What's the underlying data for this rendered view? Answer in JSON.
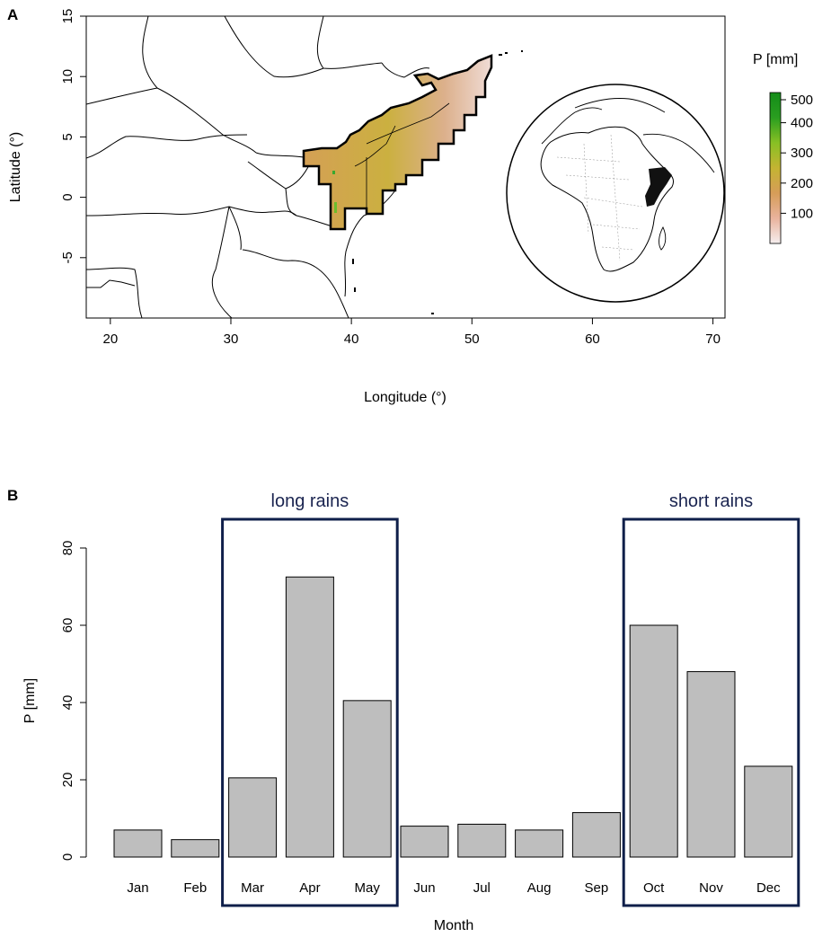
{
  "panel_a": {
    "letter": "A",
    "xlabel": "Longitude (°)",
    "ylabel": "Latitude (°)",
    "xticks": [
      "20",
      "30",
      "40",
      "50",
      "60",
      "70"
    ],
    "yticks": [
      "15",
      "10",
      "5",
      "0",
      "-5"
    ],
    "xlim": [
      18,
      71
    ],
    "ylim": [
      -10,
      15
    ],
    "legend": {
      "title": "P [mm]",
      "ticks": [
        "500",
        "400",
        "300",
        "200",
        "100"
      ],
      "range": [
        0,
        500
      ],
      "colors": [
        "#f5eeee",
        "#e9b39d",
        "#d69d58",
        "#c4b432",
        "#88c024",
        "#2a9e20",
        "#138c18"
      ]
    },
    "region_color": "#dba77c",
    "inset": "orthographic-globe-africa"
  },
  "panel_b": {
    "letter": "B",
    "chart_data": {
      "type": "bar",
      "categories": [
        "Jan",
        "Feb",
        "Mar",
        "Apr",
        "May",
        "Jun",
        "Jul",
        "Aug",
        "Sep",
        "Oct",
        "Nov",
        "Dec"
      ],
      "values": [
        7,
        4.5,
        20.5,
        72.5,
        40.5,
        8,
        8.5,
        7,
        11.5,
        60,
        48,
        23.5
      ],
      "xlabel": "Month",
      "ylabel": "P [mm]",
      "ylim": [
        0,
        80
      ],
      "yticks": [
        0,
        20,
        40,
        60,
        80
      ],
      "bar_color": "#bebebe",
      "highlights": [
        {
          "label": "long rains",
          "months": [
            "Mar",
            "Apr",
            "May"
          ]
        },
        {
          "label": "short rains",
          "months": [
            "Oct",
            "Nov",
            "Dec"
          ]
        }
      ],
      "highlight_color": "#0f1f4a"
    }
  }
}
